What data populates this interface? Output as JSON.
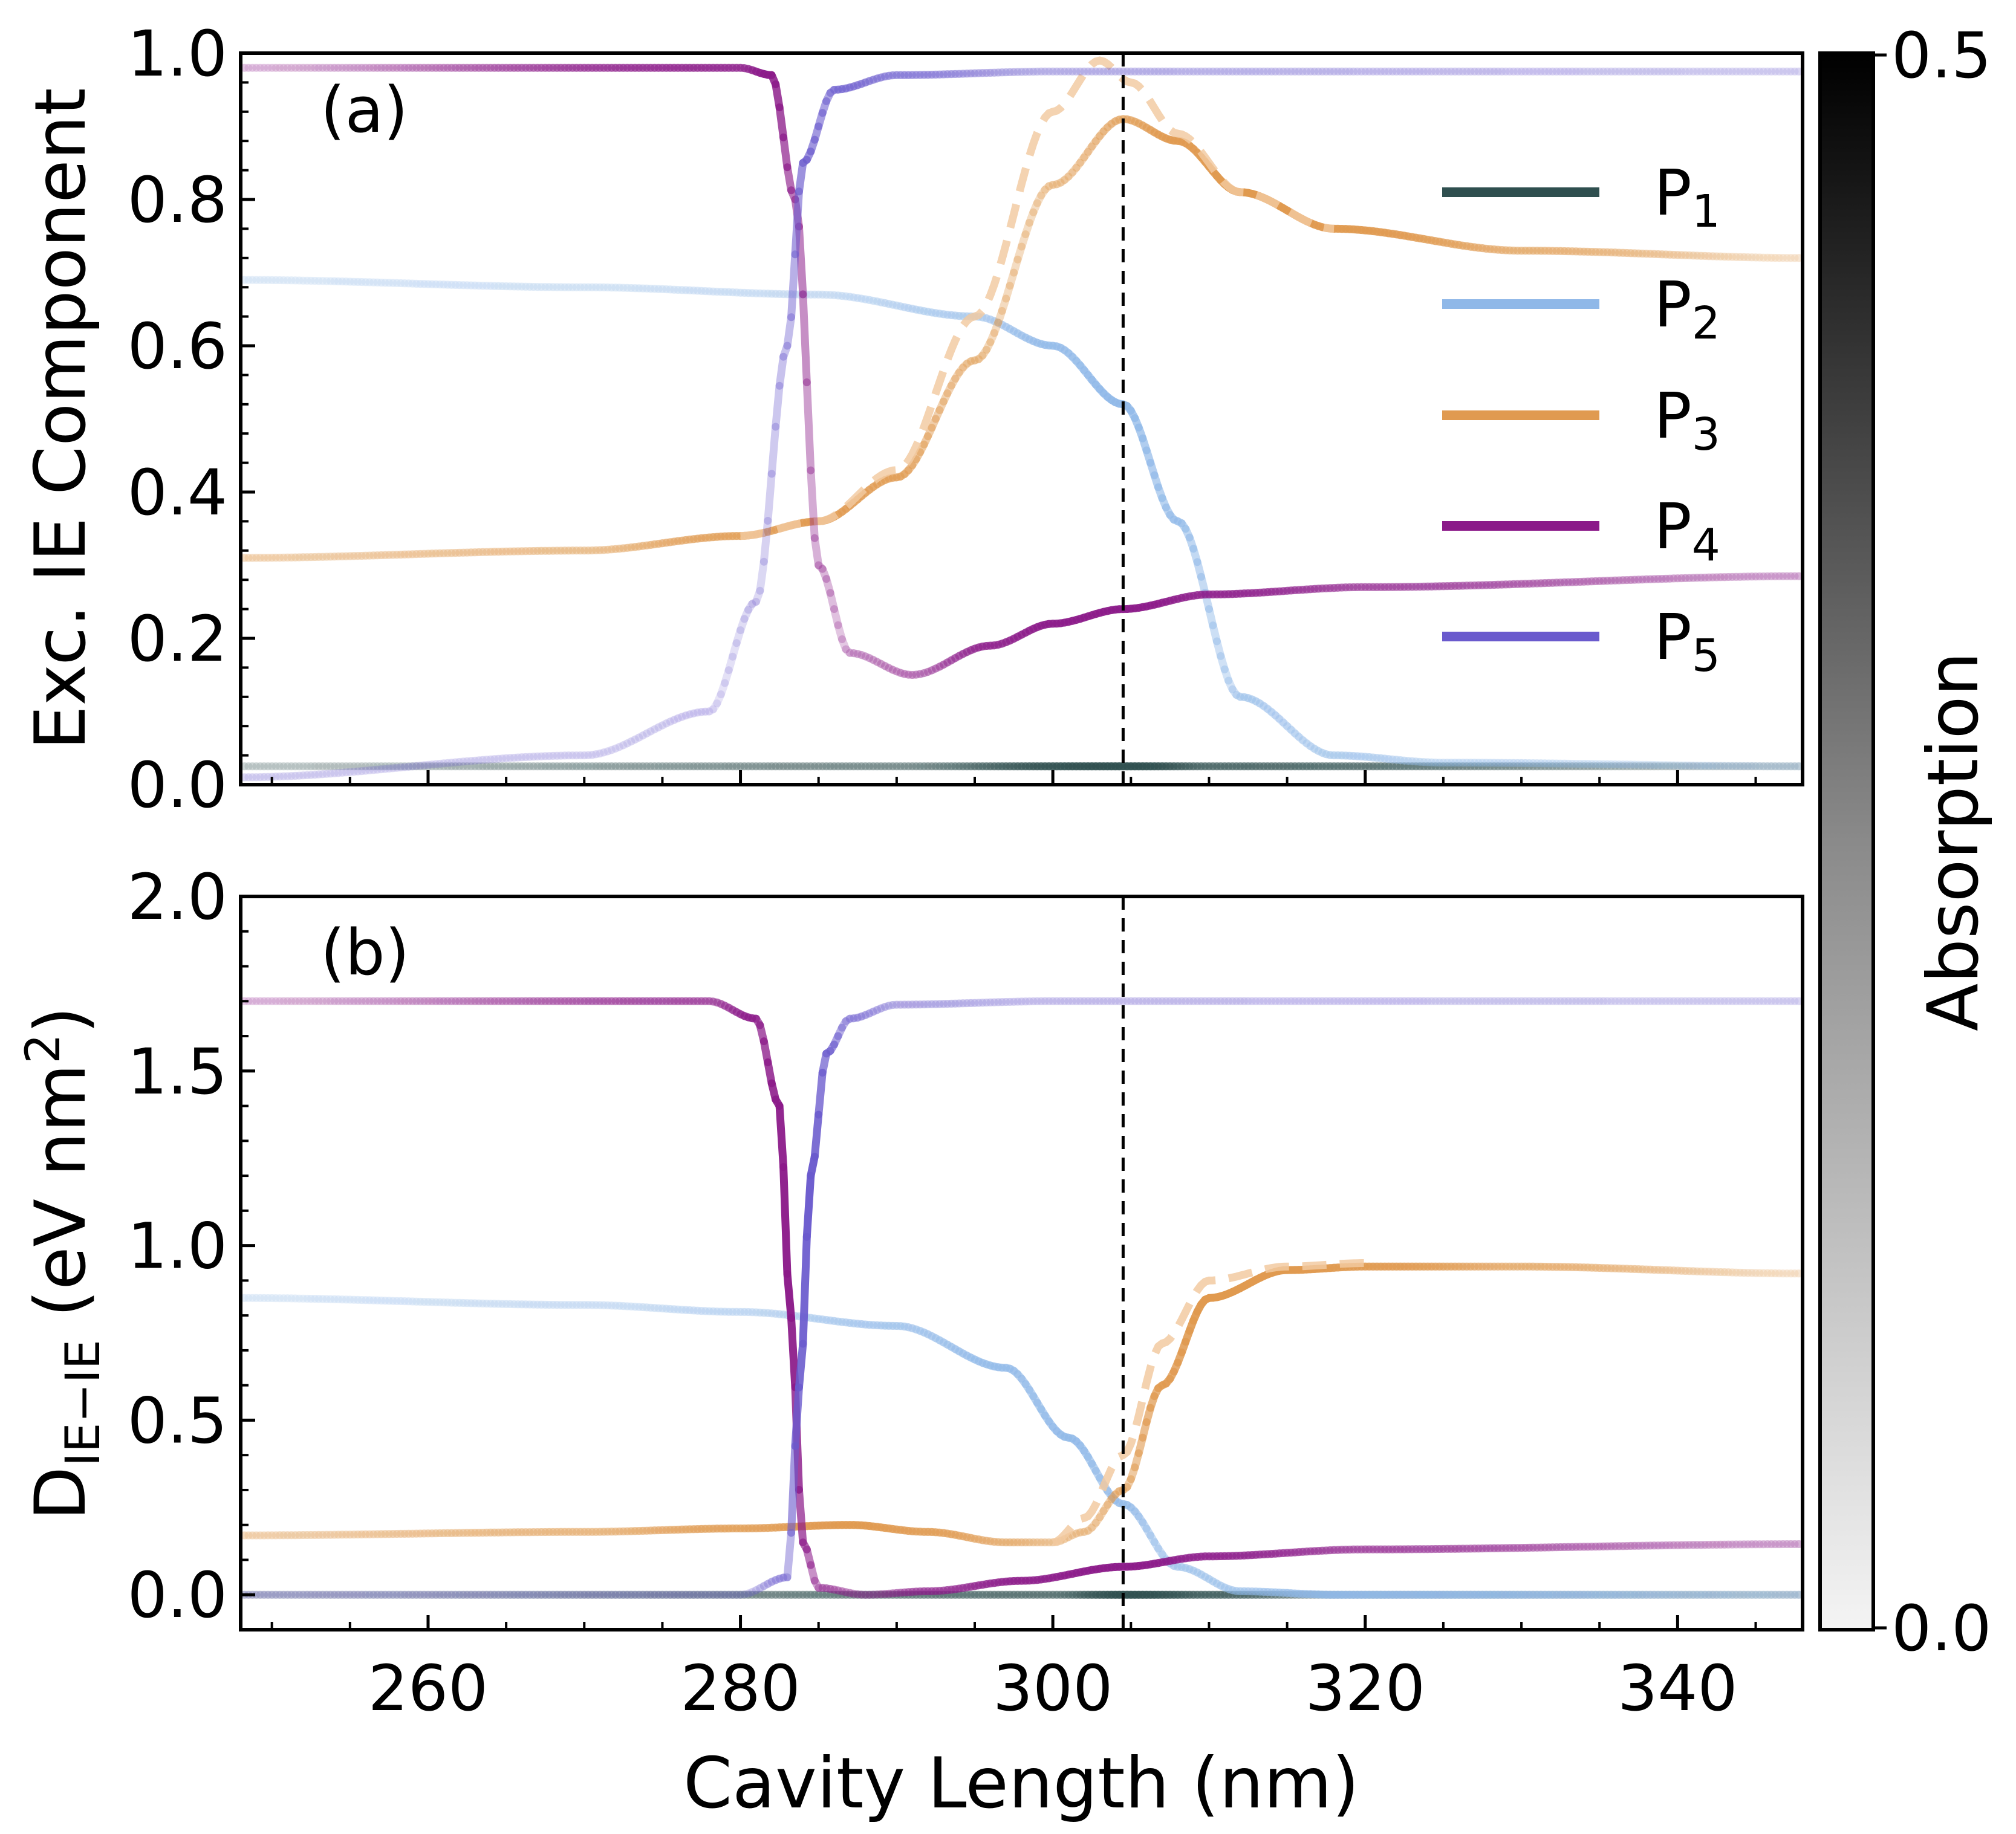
{
  "chart_data": {
    "type": "line",
    "shared_xlabel": "Cavity Length (nm)",
    "xlim": [
      248,
      348
    ],
    "xticks": [
      260,
      280,
      300,
      320,
      340
    ],
    "vline_x": 304.5,
    "legend": [
      {
        "key": "P1",
        "label": "P",
        "sub": "1",
        "color": "#2f4f4f"
      },
      {
        "key": "P2",
        "label": "P",
        "sub": "2",
        "color": "#8fb8e8"
      },
      {
        "key": "P3",
        "label": "P",
        "sub": "3",
        "color": "#e09a50"
      },
      {
        "key": "P4",
        "label": "P",
        "sub": "4",
        "color": "#8b1a89"
      },
      {
        "key": "P5",
        "label": "P",
        "sub": "5",
        "color": "#6a5acd"
      }
    ],
    "colorbar": {
      "label": "Absorption",
      "min": 0.0,
      "max": 0.5,
      "tick_labels": [
        "0.0",
        "0.5"
      ],
      "colormap": "white-to-black"
    },
    "panels": [
      {
        "label": "(a)",
        "ylabel": "Exc. IE Component",
        "ylim": [
          0.0,
          1.0
        ],
        "yticks": [
          0.0,
          0.2,
          0.4,
          0.6,
          0.8,
          1.0
        ],
        "ytick_labels": [
          "0.0",
          "0.2",
          "0.4",
          "0.6",
          "0.8",
          "1.0"
        ],
        "series": [
          {
            "name": "P1",
            "x": [
              248,
              290,
              305,
              310,
              348
            ],
            "y": [
              0.025,
              0.025,
              0.025,
              0.025,
              0.025
            ],
            "alpha": [
              0.05,
              0.2,
              0.7,
              0.35,
              0.05
            ]
          },
          {
            "name": "P2",
            "x": [
              248,
              270,
              285,
              295,
              300,
              304.5,
              308,
              312,
              318,
              325,
              348
            ],
            "y": [
              0.69,
              0.68,
              0.67,
              0.64,
              0.6,
              0.52,
              0.36,
              0.12,
              0.04,
              0.03,
              0.025
            ],
            "alpha": [
              0.05,
              0.08,
              0.12,
              0.25,
              0.5,
              0.7,
              0.5,
              0.3,
              0.25,
              0.15,
              0.05
            ]
          },
          {
            "name": "P3",
            "x": [
              248,
              270,
              280,
              285,
              290,
              295,
              300,
              304.5,
              308,
              312,
              318,
              330,
              348
            ],
            "y": [
              0.31,
              0.32,
              0.34,
              0.36,
              0.42,
              0.58,
              0.82,
              0.91,
              0.88,
              0.81,
              0.76,
              0.73,
              0.72
            ],
            "alpha": [
              0.12,
              0.2,
              0.45,
              0.65,
              0.5,
              0.3,
              0.25,
              0.4,
              0.7,
              0.9,
              0.7,
              0.3,
              0.05
            ]
          },
          {
            "name": "P3_dashed",
            "x": [
              280,
              285,
              290,
              295,
              300,
              303,
              305,
              308,
              312,
              318
            ],
            "y": [
              0.34,
              0.36,
              0.43,
              0.64,
              0.92,
              0.99,
              0.96,
              0.89,
              0.81,
              0.76
            ],
            "alpha": [
              0.2,
              0.3,
              0.3,
              0.3,
              0.35,
              0.4,
              0.45,
              0.4,
              0.3,
              0.2
            ]
          },
          {
            "name": "P4",
            "x": [
              248,
              280,
              282,
              283.5,
              285,
              287,
              291,
              296,
              300,
              304.5,
              310,
              320,
              348
            ],
            "y": [
              0.98,
              0.98,
              0.97,
              0.8,
              0.3,
              0.18,
              0.15,
              0.19,
              0.22,
              0.24,
              0.26,
              0.27,
              0.285
            ],
            "alpha": [
              0.05,
              0.45,
              0.8,
              0.5,
              0.25,
              0.15,
              0.2,
              0.5,
              0.65,
              0.7,
              0.5,
              0.3,
              0.1
            ]
          },
          {
            "name": "P5",
            "x": [
              248,
              270,
              278,
              281,
              283,
              284,
              286,
              290,
              300,
              348
            ],
            "y": [
              0.01,
              0.04,
              0.1,
              0.25,
              0.6,
              0.85,
              0.95,
              0.97,
              0.975,
              0.975
            ],
            "alpha": [
              0.05,
              0.05,
              0.07,
              0.15,
              0.3,
              0.6,
              0.45,
              0.3,
              0.12,
              0.05
            ]
          }
        ]
      },
      {
        "label": "(b)",
        "ylabel_main": "D",
        "ylabel_sub": "IE−IE",
        "ylabel_unit": " (eV nm",
        "ylabel_sup": "2",
        "ylabel_close": ")",
        "ylim": [
          -0.1,
          2.0
        ],
        "yticks": [
          0.0,
          0.5,
          1.0,
          1.5,
          2.0
        ],
        "ytick_labels": [
          "0.0",
          "0.5",
          "1.0",
          "1.5",
          "2.0"
        ],
        "series": [
          {
            "name": "P1",
            "x": [
              248,
              300,
              305,
              310,
              320,
              348
            ],
            "y": [
              0.0,
              0.0,
              0.0,
              0.0,
              0.0,
              0.0
            ],
            "alpha": [
              0.05,
              0.3,
              0.7,
              0.4,
              0.1,
              0.05
            ]
          },
          {
            "name": "P2",
            "x": [
              248,
              270,
              280,
              290,
              297,
              301,
              304.5,
              308,
              312,
              318,
              348
            ],
            "y": [
              0.85,
              0.83,
              0.81,
              0.77,
              0.65,
              0.45,
              0.26,
              0.08,
              0.01,
              0.0,
              0.0
            ],
            "alpha": [
              0.05,
              0.1,
              0.15,
              0.3,
              0.5,
              0.6,
              0.5,
              0.3,
              0.3,
              0.5,
              0.1
            ]
          },
          {
            "name": "P3",
            "x": [
              248,
              270,
              280,
              287,
              292,
              297,
              300,
              302,
              304.5,
              307,
              310,
              315,
              320,
              330,
              348
            ],
            "y": [
              0.17,
              0.18,
              0.19,
              0.2,
              0.18,
              0.15,
              0.15,
              0.18,
              0.3,
              0.6,
              0.85,
              0.93,
              0.94,
              0.94,
              0.92
            ],
            "alpha": [
              0.12,
              0.25,
              0.45,
              0.7,
              0.5,
              0.3,
              0.2,
              0.25,
              0.4,
              0.7,
              0.9,
              0.85,
              0.6,
              0.3,
              0.05
            ]
          },
          {
            "name": "P3_dashed",
            "x": [
              300,
              302,
              304.5,
              307,
              310,
              315,
              320
            ],
            "y": [
              0.15,
              0.22,
              0.4,
              0.72,
              0.9,
              0.94,
              0.95
            ],
            "alpha": [
              0.25,
              0.35,
              0.4,
              0.45,
              0.4,
              0.3,
              0.2
            ]
          },
          {
            "name": "P4",
            "x": [
              248,
              278,
              281,
              282.5,
              283.2,
              284,
              285,
              288,
              292,
              298,
              304.5,
              310,
              320,
              348
            ],
            "y": [
              1.7,
              1.7,
              1.65,
              1.4,
              0.8,
              0.15,
              0.02,
              0.0,
              0.01,
              0.04,
              0.08,
              0.11,
              0.13,
              0.145
            ],
            "alpha": [
              0.05,
              0.3,
              0.6,
              0.85,
              0.9,
              0.6,
              0.3,
              0.15,
              0.35,
              0.55,
              0.7,
              0.5,
              0.3,
              0.1
            ]
          },
          {
            "name": "P5",
            "x": [
              248,
              280,
              283,
              283.8,
              284.5,
              285.5,
              287,
              290,
              300,
              348
            ],
            "y": [
              0.0,
              0.0,
              0.05,
              0.6,
              1.2,
              1.55,
              1.65,
              1.69,
              1.7,
              1.7
            ],
            "alpha": [
              0.05,
              0.05,
              0.3,
              0.8,
              0.9,
              0.6,
              0.3,
              0.15,
              0.08,
              0.05
            ]
          }
        ]
      }
    ]
  }
}
